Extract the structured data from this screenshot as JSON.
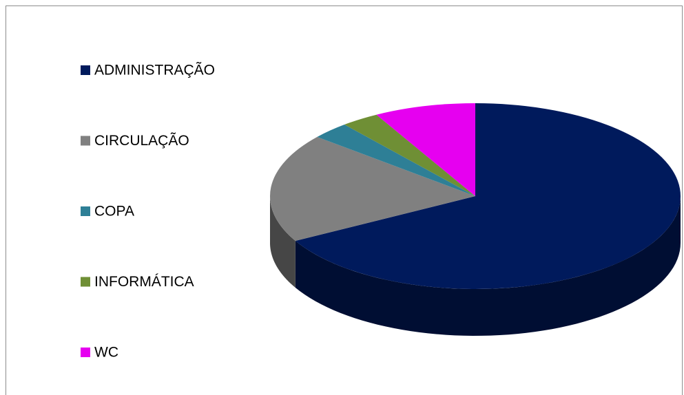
{
  "chart_data": {
    "type": "pie",
    "categories": [
      "ADMINISTRAÇÃO",
      "CIRCULAÇÃO",
      "COPA",
      "INFORMÁTICA",
      "WC"
    ],
    "values": [
      67,
      19,
      3,
      3,
      8
    ],
    "colors": [
      "#001a5c",
      "#808080",
      "#2e7f96",
      "#6f8f35",
      "#e600f0"
    ],
    "legend": "left",
    "three_d": true
  }
}
